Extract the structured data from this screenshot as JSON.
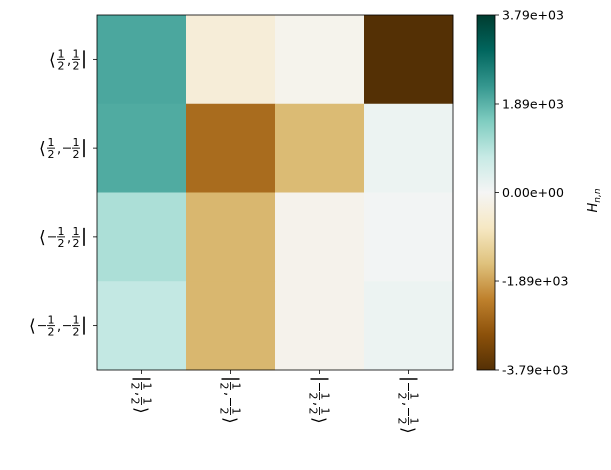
{
  "chart_data": {
    "type": "heatmap",
    "colormap": "BrBG",
    "row_labels": [
      {
        "pre": "⟨",
        "a": "1/2",
        "b": "1/2"
      },
      {
        "pre": "⟨",
        "a": "1/2",
        "b": "-1/2"
      },
      {
        "pre": "⟨",
        "a": "-1/2",
        "b": "1/2"
      },
      {
        "pre": "⟨",
        "a": "-1/2",
        "b": "-1/2"
      }
    ],
    "col_labels": [
      {
        "a": "1/2",
        "b": "1/2"
      },
      {
        "a": "1/2",
        "b": "-1/2"
      },
      {
        "a": "-1/2",
        "b": "1/2"
      },
      {
        "a": "-1/2",
        "b": "-1/2"
      }
    ],
    "values": [
      [
        2050,
        -440,
        -130,
        -3790
      ],
      [
        2000,
        -2600,
        -1600,
        150
      ],
      [
        1050,
        -1650,
        -150,
        50
      ],
      [
        800,
        -1650,
        -150,
        150
      ]
    ],
    "vmin": -3790,
    "vmax": 3790,
    "colorbar": {
      "label": "H_{n,n}",
      "ticks": [
        3790,
        1890,
        0,
        -1890,
        -3790
      ],
      "tick_labels": [
        "3.79e+03",
        "1.89e+03",
        "0.00e+00",
        "-1.89e+03",
        "-3.79e+03"
      ]
    }
  }
}
